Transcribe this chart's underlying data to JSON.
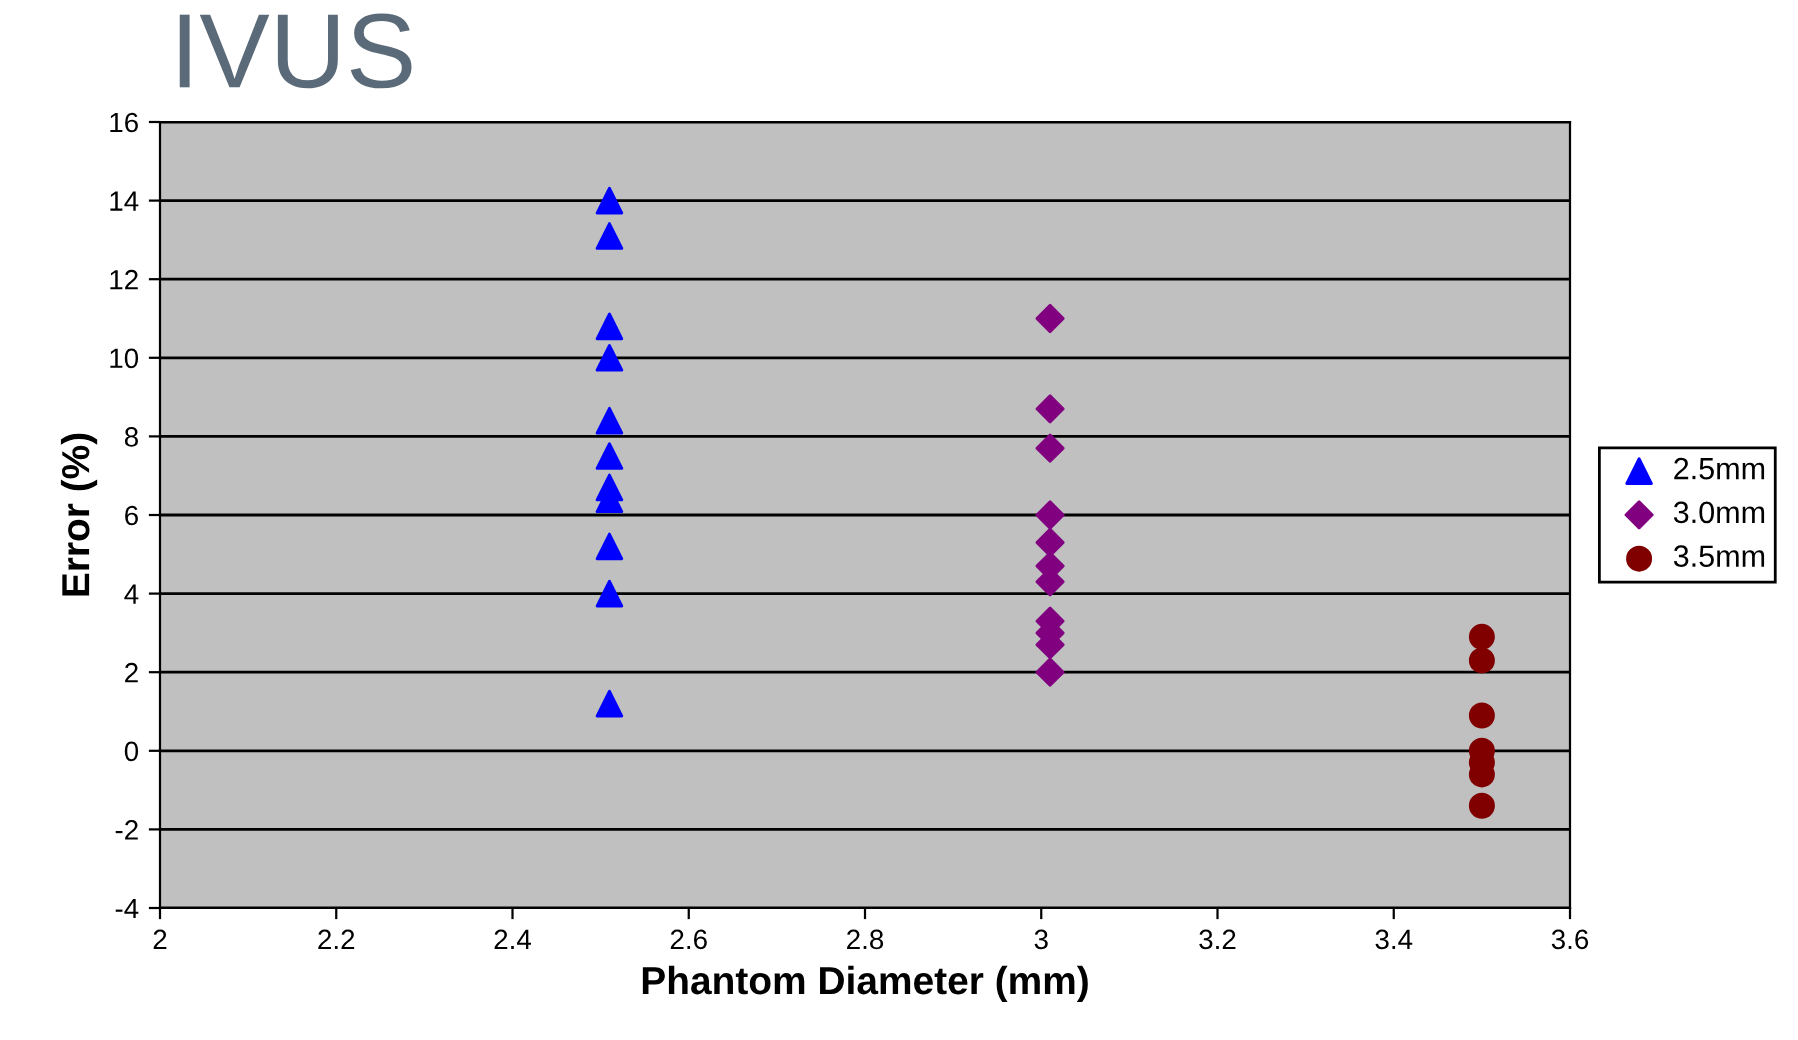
{
  "chart_data": {
    "type": "scatter",
    "title": "IVUS",
    "xlabel": "Phantom Diameter (mm)",
    "ylabel": "Error (%)",
    "xlim": [
      2,
      3.6
    ],
    "xticks": [
      2,
      2.2,
      2.4,
      2.6,
      2.8,
      3,
      3.2,
      3.4,
      3.6
    ],
    "ylim": [
      -4,
      16
    ],
    "yticks": [
      -4,
      -2,
      0,
      2,
      4,
      6,
      8,
      10,
      12,
      14,
      16
    ],
    "grid": "y",
    "legend": "right",
    "series": [
      {
        "name": "2.5mm",
        "color": "#0000ff",
        "marker": "triangle",
        "x": [
          2.51,
          2.51,
          2.51,
          2.51,
          2.51,
          2.51,
          2.51,
          2.51,
          2.51,
          2.51,
          2.51
        ],
        "values": [
          14.0,
          13.1,
          10.8,
          10.0,
          8.4,
          7.5,
          6.7,
          6.4,
          5.2,
          4.0,
          1.2
        ]
      },
      {
        "name": "3.0mm",
        "color": "#800080",
        "marker": "diamond",
        "x": [
          3.01,
          3.01,
          3.01,
          3.01,
          3.01,
          3.01,
          3.01,
          3.01,
          3.01,
          3.01,
          3.01
        ],
        "values": [
          11.0,
          8.7,
          7.7,
          6.0,
          5.3,
          4.7,
          4.3,
          3.3,
          3.0,
          2.7,
          2.0
        ]
      },
      {
        "name": "3.5mm",
        "color": "#800000",
        "marker": "circle",
        "x": [
          3.5,
          3.5,
          3.5,
          3.5,
          3.5,
          3.5,
          3.5
        ],
        "values": [
          2.9,
          2.3,
          0.9,
          0.0,
          -0.3,
          -0.6,
          -1.4
        ]
      }
    ]
  }
}
